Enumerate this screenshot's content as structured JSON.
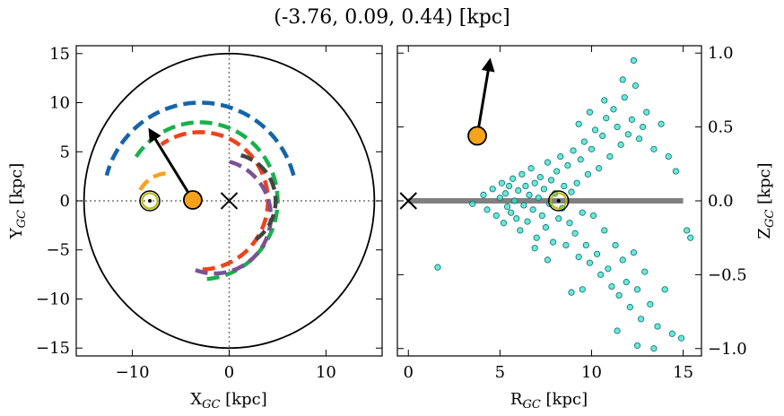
{
  "title": "(-3.76, 0.09, 0.44) [kpc]",
  "chart_data": [
    {
      "type": "line",
      "panel": "left",
      "xlabel": "X",
      "xlabel_sub": "GC",
      "xlabel_unit": " [kpc]",
      "ylabel": "Y",
      "ylabel_sub": "GC",
      "ylabel_unit": " [kpc]",
      "xlim": [
        -15.8,
        15.8
      ],
      "ylim": [
        -15.8,
        15.8
      ],
      "xticks": [
        -10,
        0,
        10
      ],
      "xtick_labels": [
        "−10",
        "0",
        "10"
      ],
      "yticks": [
        -15,
        -10,
        -5,
        0,
        5,
        10,
        15
      ],
      "ytick_labels": [
        "−15",
        "−10",
        "−5",
        "0",
        "5",
        "10",
        "15"
      ],
      "crosshair": {
        "x": 0,
        "y": 0,
        "style": "dotted",
        "color": "#777777"
      },
      "boundary_circle": {
        "cx": 0,
        "cy": 0,
        "r": 15
      },
      "galactic_center_marker": {
        "x": 0,
        "y": 0,
        "marker": "x"
      },
      "sun_marker": {
        "x": -8.2,
        "y": 0,
        "marker": "sun-symbol",
        "color": "#b8b800"
      },
      "object_marker": {
        "x": -3.76,
        "y": 0.09,
        "color": "#f7a21b"
      },
      "velocity_arrow": {
        "from": [
          -3.76,
          0.09
        ],
        "to": [
          -8.2,
          7.2
        ]
      },
      "series": [
        {
          "name": "",
          "color": "#1565a8",
          "center": [
            -3.0,
            0
          ],
          "radius": 10.0,
          "angle_range_deg": [
            15,
            165
          ]
        },
        {
          "name": "",
          "color": "#1ab04c",
          "center": [
            -3.0,
            0
          ],
          "radius": 8.0,
          "angle_range_deg": [
            -85,
            150
          ]
        },
        {
          "name": "",
          "color": "#f0421c",
          "center": [
            -3.0,
            0
          ],
          "radius": 7.0,
          "angle_range_deg": [
            -88,
            125
          ]
        },
        {
          "name": "",
          "color": "#f7a21b",
          "center": [
            -6.3,
            -0.5
          ],
          "radius": 3.3,
          "angle_range_deg": [
            95,
            160
          ]
        },
        {
          "name": "",
          "color": "#7b5296",
          "center": [
            -1.5,
            -1.6
          ],
          "radius": 5.8,
          "angle_range_deg": [
            -110,
            80
          ]
        },
        {
          "name": "",
          "color": "#444444",
          "center": [
            0,
            0
          ],
          "radius": 4.8,
          "angle_range_deg": [
            -55,
            80
          ]
        }
      ]
    },
    {
      "type": "scatter",
      "panel": "right",
      "xlabel": "R",
      "xlabel_sub": "GC",
      "xlabel_unit": " [kpc]",
      "ylabel": "Z",
      "ylabel_sub": "GC",
      "ylabel_unit": " [kpc]",
      "xlim": [
        -0.6,
        16.0
      ],
      "ylim": [
        -1.05,
        1.05
      ],
      "xticks": [
        0,
        5,
        10,
        15
      ],
      "xtick_labels": [
        "0",
        "5",
        "10",
        "15"
      ],
      "yticks": [
        -1.0,
        -0.5,
        0.0,
        0.5,
        1.0
      ],
      "ytick_labels": [
        "−1.0",
        "−0.5",
        "0.0",
        "0.5",
        "1.0"
      ],
      "disk_line": {
        "x": [
          0,
          15
        ],
        "y": 0,
        "color": "#808080"
      },
      "galactic_center_marker": {
        "x": 0,
        "y": 0,
        "marker": "x"
      },
      "sun_marker": {
        "x": 8.2,
        "y": 0,
        "marker": "sun-symbol",
        "color": "#b8b800"
      },
      "object_marker": {
        "x": 3.76,
        "y": 0.44,
        "color": "#f7a21b"
      },
      "velocity_arrow": {
        "from": [
          3.76,
          0.44
        ],
        "to": [
          4.45,
          0.95
        ]
      },
      "point_style": {
        "fill": "#35e0d0",
        "stroke": "#0d6e68"
      },
      "points": [
        [
          1.6,
          -0.45
        ],
        [
          3.5,
          -0.02
        ],
        [
          4.1,
          0.04
        ],
        [
          4.3,
          -0.06
        ],
        [
          4.6,
          0.08
        ],
        [
          4.8,
          -0.1
        ],
        [
          5.0,
          0.02
        ],
        [
          5.1,
          0.12
        ],
        [
          5.2,
          -0.15
        ],
        [
          5.3,
          0.05
        ],
        [
          5.4,
          -0.04
        ],
        [
          5.5,
          0.1
        ],
        [
          5.6,
          -0.08
        ],
        [
          5.7,
          0.15
        ],
        [
          5.8,
          0.0
        ],
        [
          5.9,
          -0.12
        ],
        [
          6.0,
          0.07
        ],
        [
          6.1,
          -0.2
        ],
        [
          6.2,
          0.18
        ],
        [
          6.3,
          -0.03
        ],
        [
          6.4,
          0.1
        ],
        [
          6.5,
          -0.14
        ],
        [
          6.6,
          0.04
        ],
        [
          6.7,
          0.22
        ],
        [
          6.8,
          -0.06
        ],
        [
          6.9,
          0.12
        ],
        [
          7.0,
          -0.25
        ],
        [
          7.1,
          0.02
        ],
        [
          7.2,
          0.16
        ],
        [
          7.3,
          -0.1
        ],
        [
          7.4,
          0.08
        ],
        [
          7.5,
          -0.18
        ],
        [
          7.6,
          0.26
        ],
        [
          7.7,
          -0.02
        ],
        [
          7.8,
          0.14
        ],
        [
          7.9,
          -0.28
        ],
        [
          8.0,
          0.05
        ],
        [
          8.1,
          0.2
        ],
        [
          8.2,
          -0.12
        ],
        [
          8.3,
          0.3
        ],
        [
          8.4,
          -0.05
        ],
        [
          8.5,
          0.1
        ],
        [
          8.6,
          -0.3
        ],
        [
          8.7,
          0.24
        ],
        [
          8.8,
          -0.15
        ],
        [
          8.9,
          0.06
        ],
        [
          9.0,
          0.34
        ],
        [
          9.1,
          -0.22
        ],
        [
          9.2,
          0.12
        ],
        [
          9.3,
          -0.38
        ],
        [
          9.4,
          0.28
        ],
        [
          9.5,
          -0.08
        ],
        [
          9.6,
          0.4
        ],
        [
          9.7,
          -0.3
        ],
        [
          9.8,
          0.18
        ],
        [
          9.9,
          -0.42
        ],
        [
          10.0,
          0.35
        ],
        [
          10.1,
          -0.1
        ],
        [
          10.2,
          0.48
        ],
        [
          10.3,
          -0.36
        ],
        [
          10.4,
          0.22
        ],
        [
          10.5,
          -0.5
        ],
        [
          10.6,
          0.44
        ],
        [
          10.7,
          -0.2
        ],
        [
          10.8,
          0.56
        ],
        [
          10.9,
          -0.46
        ],
        [
          11.0,
          0.3
        ],
        [
          11.1,
          -0.58
        ],
        [
          11.2,
          0.62
        ],
        [
          11.3,
          -0.3
        ],
        [
          11.4,
          0.5
        ],
        [
          11.5,
          -0.64
        ],
        [
          11.6,
          0.38
        ],
        [
          11.7,
          -0.4
        ],
        [
          11.8,
          0.7
        ],
        [
          11.9,
          -0.55
        ],
        [
          12.0,
          0.45
        ],
        [
          12.1,
          -0.72
        ],
        [
          12.2,
          0.55
        ],
        [
          12.3,
          -0.35
        ],
        [
          12.4,
          0.78
        ],
        [
          12.5,
          -0.6
        ],
        [
          12.6,
          0.42
        ],
        [
          12.7,
          -0.8
        ],
        [
          12.8,
          0.5
        ],
        [
          12.9,
          -0.48
        ],
        [
          13.0,
          0.6
        ],
        [
          13.2,
          -0.7
        ],
        [
          13.4,
          0.35
        ],
        [
          13.6,
          -0.85
        ],
        [
          13.8,
          0.52
        ],
        [
          14.0,
          -0.6
        ],
        [
          14.2,
          0.3
        ],
        [
          14.4,
          -0.9
        ],
        [
          14.6,
          0.2
        ],
        [
          14.9,
          -0.93
        ],
        [
          15.2,
          -0.2
        ],
        [
          15.4,
          -0.25
        ],
        [
          12.3,
          0.95
        ],
        [
          11.7,
          0.82
        ],
        [
          10.7,
          0.68
        ],
        [
          9.9,
          0.6
        ],
        [
          9.3,
          0.52
        ],
        [
          8.9,
          -0.62
        ],
        [
          9.5,
          -0.6
        ],
        [
          7.6,
          -0.4
        ],
        [
          6.9,
          -0.32
        ],
        [
          13.4,
          -1.0
        ],
        [
          12.5,
          -0.98
        ],
        [
          11.4,
          -0.88
        ]
      ]
    }
  ]
}
